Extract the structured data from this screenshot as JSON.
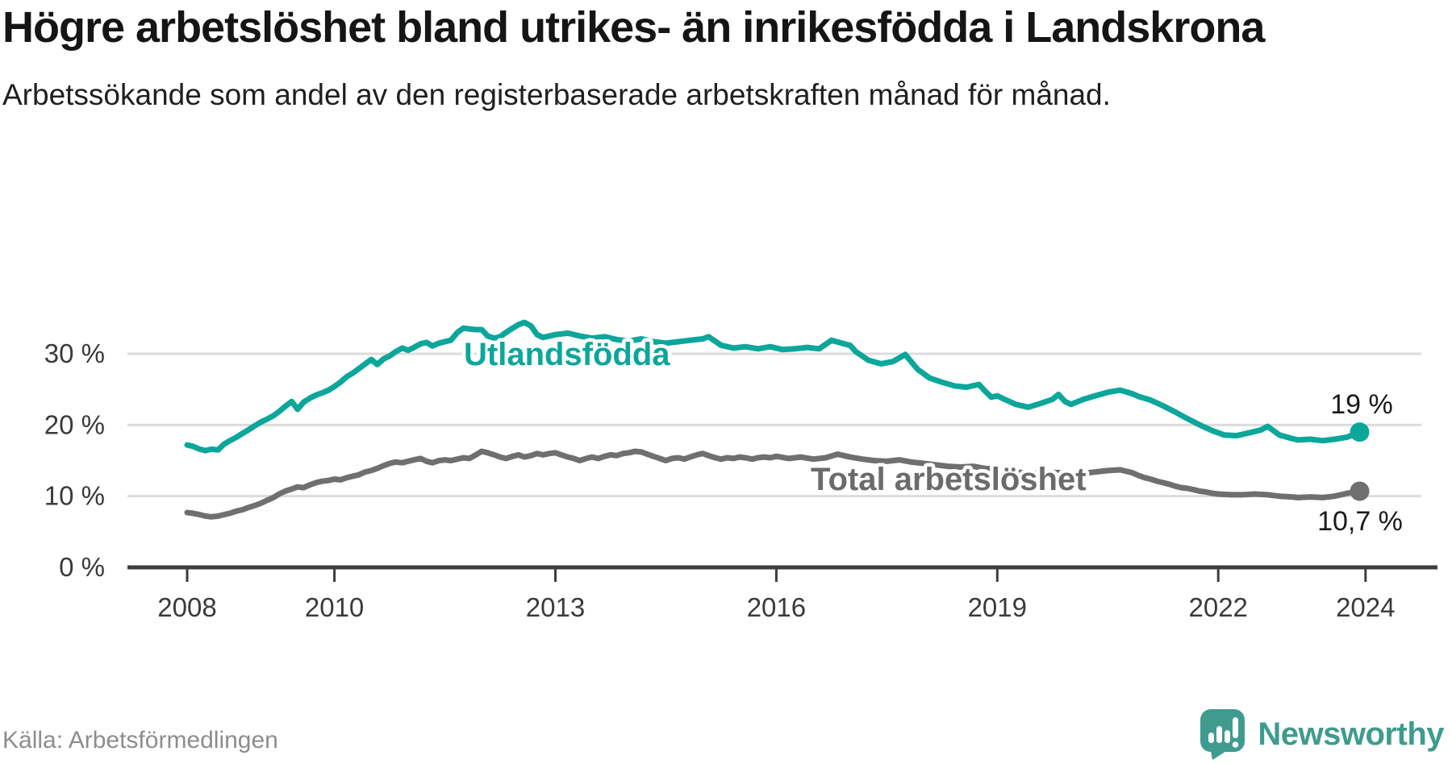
{
  "header": {
    "title": "Högre arbetslöshet bland utrikes- än inrikesfödda i Landskrona",
    "subtitle": "Arbetssökande som andel av den registerbaserade arbetskraften månad för månad."
  },
  "footer": {
    "source": "Källa: Arbetsförmedlingen",
    "brand": "Newsworthy",
    "brand_logo_icon": "bar-chart-speech-bubble-icon"
  },
  "colors": {
    "series_foreign_born": "#0ca69b",
    "series_total": "#6f6f6f",
    "grid": "#dcdcdc",
    "axis": "#3d3d3d",
    "tick_text": "#3a3a3a",
    "annotation_text": "#1a1a1a",
    "brand": "#3f9b8e"
  },
  "chart_data": {
    "type": "line",
    "unit": "%",
    "grid": "horizontal",
    "legend_position": "inline-labels",
    "xlim": [
      2007.2,
      2024.9
    ],
    "ylim": [
      0,
      36.5
    ],
    "x_ticks": [
      2008,
      2010,
      2013,
      2016,
      2019,
      2022,
      2024
    ],
    "y_ticks": [
      {
        "value": 0,
        "label": "0 %"
      },
      {
        "value": 10,
        "label": "10 %"
      },
      {
        "value": 20,
        "label": "20 %"
      },
      {
        "value": 30,
        "label": "30 %"
      }
    ],
    "series": [
      {
        "name": "Utlandsfödda",
        "color": "#0ca69b",
        "end_label": "19 %",
        "end_value": 19,
        "points": [
          [
            2008.0,
            17.2
          ],
          [
            2008.08,
            17.0
          ],
          [
            2008.17,
            16.6
          ],
          [
            2008.25,
            16.4
          ],
          [
            2008.33,
            16.6
          ],
          [
            2008.42,
            16.5
          ],
          [
            2008.5,
            17.3
          ],
          [
            2008.58,
            17.8
          ],
          [
            2008.67,
            18.3
          ],
          [
            2008.75,
            18.8
          ],
          [
            2008.83,
            19.3
          ],
          [
            2008.92,
            19.9
          ],
          [
            2009.0,
            20.4
          ],
          [
            2009.08,
            20.8
          ],
          [
            2009.17,
            21.3
          ],
          [
            2009.25,
            21.9
          ],
          [
            2009.33,
            22.6
          ],
          [
            2009.42,
            23.3
          ],
          [
            2009.5,
            22.2
          ],
          [
            2009.58,
            23.2
          ],
          [
            2009.67,
            23.8
          ],
          [
            2009.75,
            24.2
          ],
          [
            2009.83,
            24.5
          ],
          [
            2009.92,
            24.9
          ],
          [
            2010.0,
            25.4
          ],
          [
            2010.08,
            26.0
          ],
          [
            2010.17,
            26.8
          ],
          [
            2010.25,
            27.3
          ],
          [
            2010.33,
            27.9
          ],
          [
            2010.42,
            28.6
          ],
          [
            2010.5,
            29.2
          ],
          [
            2010.58,
            28.5
          ],
          [
            2010.67,
            29.3
          ],
          [
            2010.75,
            29.7
          ],
          [
            2010.83,
            30.3
          ],
          [
            2010.92,
            30.8
          ],
          [
            2011.0,
            30.5
          ],
          [
            2011.08,
            30.9
          ],
          [
            2011.17,
            31.4
          ],
          [
            2011.25,
            31.6
          ],
          [
            2011.33,
            31.1
          ],
          [
            2011.42,
            31.5
          ],
          [
            2011.5,
            31.7
          ],
          [
            2011.58,
            31.9
          ],
          [
            2011.67,
            33.0
          ],
          [
            2011.75,
            33.6
          ],
          [
            2011.83,
            33.5
          ],
          [
            2011.92,
            33.4
          ],
          [
            2012.0,
            33.4
          ],
          [
            2012.08,
            32.5
          ],
          [
            2012.17,
            32.2
          ],
          [
            2012.25,
            32.4
          ],
          [
            2012.33,
            33.0
          ],
          [
            2012.42,
            33.6
          ],
          [
            2012.5,
            34.1
          ],
          [
            2012.58,
            34.4
          ],
          [
            2012.67,
            33.9
          ],
          [
            2012.75,
            32.7
          ],
          [
            2012.83,
            32.3
          ],
          [
            2012.92,
            32.5
          ],
          [
            2013.0,
            32.7
          ],
          [
            2013.17,
            32.9
          ],
          [
            2013.33,
            32.5
          ],
          [
            2013.5,
            32.2
          ],
          [
            2013.67,
            32.4
          ],
          [
            2013.83,
            32.0
          ],
          [
            2014.0,
            31.8
          ],
          [
            2014.17,
            32.1
          ],
          [
            2014.33,
            31.7
          ],
          [
            2014.5,
            31.5
          ],
          [
            2014.67,
            31.7
          ],
          [
            2014.83,
            31.9
          ],
          [
            2015.0,
            32.1
          ],
          [
            2015.08,
            32.4
          ],
          [
            2015.25,
            31.2
          ],
          [
            2015.42,
            30.8
          ],
          [
            2015.58,
            31.0
          ],
          [
            2015.75,
            30.7
          ],
          [
            2015.92,
            31.0
          ],
          [
            2016.08,
            30.6
          ],
          [
            2016.25,
            30.7
          ],
          [
            2016.42,
            30.9
          ],
          [
            2016.58,
            30.7
          ],
          [
            2016.75,
            31.9
          ],
          [
            2016.92,
            31.4
          ],
          [
            2017.0,
            31.2
          ],
          [
            2017.08,
            30.3
          ],
          [
            2017.25,
            29.1
          ],
          [
            2017.42,
            28.6
          ],
          [
            2017.58,
            28.9
          ],
          [
            2017.75,
            29.9
          ],
          [
            2017.83,
            28.9
          ],
          [
            2017.92,
            27.8
          ],
          [
            2018.08,
            26.6
          ],
          [
            2018.25,
            26.0
          ],
          [
            2018.42,
            25.5
          ],
          [
            2018.58,
            25.3
          ],
          [
            2018.75,
            25.7
          ],
          [
            2018.83,
            24.8
          ],
          [
            2018.92,
            23.9
          ],
          [
            2019.0,
            24.1
          ],
          [
            2019.08,
            23.7
          ],
          [
            2019.25,
            22.9
          ],
          [
            2019.42,
            22.5
          ],
          [
            2019.58,
            23.0
          ],
          [
            2019.75,
            23.6
          ],
          [
            2019.83,
            24.3
          ],
          [
            2019.92,
            23.3
          ],
          [
            2020.0,
            22.9
          ],
          [
            2020.17,
            23.6
          ],
          [
            2020.33,
            24.1
          ],
          [
            2020.5,
            24.6
          ],
          [
            2020.67,
            24.9
          ],
          [
            2020.83,
            24.4
          ],
          [
            2020.92,
            24.0
          ],
          [
            2021.08,
            23.5
          ],
          [
            2021.25,
            22.7
          ],
          [
            2021.42,
            21.8
          ],
          [
            2021.58,
            20.9
          ],
          [
            2021.75,
            20.0
          ],
          [
            2021.92,
            19.2
          ],
          [
            2022.08,
            18.6
          ],
          [
            2022.25,
            18.5
          ],
          [
            2022.42,
            18.9
          ],
          [
            2022.58,
            19.3
          ],
          [
            2022.67,
            19.8
          ],
          [
            2022.83,
            18.6
          ],
          [
            2023.0,
            18.1
          ],
          [
            2023.08,
            17.9
          ],
          [
            2023.25,
            18.0
          ],
          [
            2023.42,
            17.8
          ],
          [
            2023.58,
            18.0
          ],
          [
            2023.75,
            18.3
          ],
          [
            2023.92,
            19.0
          ]
        ]
      },
      {
        "name": "Total arbetslöshet",
        "color": "#6f6f6f",
        "end_label": "10,7 %",
        "end_value": 10.7,
        "points": [
          [
            2008.0,
            7.7
          ],
          [
            2008.08,
            7.6
          ],
          [
            2008.17,
            7.4
          ],
          [
            2008.25,
            7.2
          ],
          [
            2008.33,
            7.1
          ],
          [
            2008.42,
            7.2
          ],
          [
            2008.5,
            7.4
          ],
          [
            2008.58,
            7.6
          ],
          [
            2008.67,
            7.9
          ],
          [
            2008.75,
            8.1
          ],
          [
            2008.83,
            8.4
          ],
          [
            2008.92,
            8.7
          ],
          [
            2009.0,
            9.0
          ],
          [
            2009.08,
            9.4
          ],
          [
            2009.17,
            9.8
          ],
          [
            2009.25,
            10.3
          ],
          [
            2009.33,
            10.7
          ],
          [
            2009.42,
            11.0
          ],
          [
            2009.5,
            11.3
          ],
          [
            2009.58,
            11.2
          ],
          [
            2009.67,
            11.6
          ],
          [
            2009.75,
            11.9
          ],
          [
            2009.83,
            12.1
          ],
          [
            2009.92,
            12.2
          ],
          [
            2010.0,
            12.4
          ],
          [
            2010.08,
            12.3
          ],
          [
            2010.17,
            12.6
          ],
          [
            2010.25,
            12.8
          ],
          [
            2010.33,
            13.0
          ],
          [
            2010.42,
            13.4
          ],
          [
            2010.5,
            13.6
          ],
          [
            2010.58,
            13.9
          ],
          [
            2010.67,
            14.3
          ],
          [
            2010.75,
            14.6
          ],
          [
            2010.83,
            14.8
          ],
          [
            2010.92,
            14.7
          ],
          [
            2011.0,
            14.9
          ],
          [
            2011.08,
            15.1
          ],
          [
            2011.17,
            15.3
          ],
          [
            2011.25,
            14.9
          ],
          [
            2011.33,
            14.7
          ],
          [
            2011.42,
            15.0
          ],
          [
            2011.5,
            15.1
          ],
          [
            2011.58,
            15.0
          ],
          [
            2011.67,
            15.2
          ],
          [
            2011.75,
            15.4
          ],
          [
            2011.83,
            15.3
          ],
          [
            2011.92,
            15.8
          ],
          [
            2012.0,
            16.3
          ],
          [
            2012.08,
            16.1
          ],
          [
            2012.17,
            15.8
          ],
          [
            2012.25,
            15.5
          ],
          [
            2012.33,
            15.3
          ],
          [
            2012.42,
            15.6
          ],
          [
            2012.5,
            15.8
          ],
          [
            2012.58,
            15.5
          ],
          [
            2012.67,
            15.7
          ],
          [
            2012.75,
            16.0
          ],
          [
            2012.83,
            15.8
          ],
          [
            2012.92,
            16.0
          ],
          [
            2013.0,
            16.1
          ],
          [
            2013.08,
            15.8
          ],
          [
            2013.17,
            15.5
          ],
          [
            2013.25,
            15.3
          ],
          [
            2013.33,
            15.0
          ],
          [
            2013.42,
            15.3
          ],
          [
            2013.5,
            15.5
          ],
          [
            2013.58,
            15.3
          ],
          [
            2013.67,
            15.6
          ],
          [
            2013.75,
            15.8
          ],
          [
            2013.83,
            15.7
          ],
          [
            2013.92,
            16.0
          ],
          [
            2014.0,
            16.1
          ],
          [
            2014.08,
            16.3
          ],
          [
            2014.17,
            16.2
          ],
          [
            2014.25,
            15.9
          ],
          [
            2014.33,
            15.6
          ],
          [
            2014.42,
            15.3
          ],
          [
            2014.5,
            15.0
          ],
          [
            2014.58,
            15.3
          ],
          [
            2014.67,
            15.4
          ],
          [
            2014.75,
            15.2
          ],
          [
            2014.83,
            15.5
          ],
          [
            2014.92,
            15.8
          ],
          [
            2015.0,
            16.0
          ],
          [
            2015.08,
            15.7
          ],
          [
            2015.17,
            15.4
          ],
          [
            2015.25,
            15.2
          ],
          [
            2015.33,
            15.4
          ],
          [
            2015.42,
            15.3
          ],
          [
            2015.5,
            15.5
          ],
          [
            2015.58,
            15.4
          ],
          [
            2015.67,
            15.2
          ],
          [
            2015.75,
            15.4
          ],
          [
            2015.83,
            15.5
          ],
          [
            2015.92,
            15.4
          ],
          [
            2016.0,
            15.6
          ],
          [
            2016.17,
            15.3
          ],
          [
            2016.33,
            15.5
          ],
          [
            2016.5,
            15.2
          ],
          [
            2016.67,
            15.4
          ],
          [
            2016.83,
            15.9
          ],
          [
            2017.0,
            15.5
          ],
          [
            2017.17,
            15.2
          ],
          [
            2017.33,
            15.0
          ],
          [
            2017.5,
            14.9
          ],
          [
            2017.67,
            15.1
          ],
          [
            2017.83,
            14.8
          ],
          [
            2018.0,
            14.6
          ],
          [
            2018.17,
            14.4
          ],
          [
            2018.33,
            14.2
          ],
          [
            2018.5,
            14.1
          ],
          [
            2018.67,
            14.2
          ],
          [
            2018.83,
            13.9
          ],
          [
            2019.0,
            13.8
          ],
          [
            2019.17,
            13.5
          ],
          [
            2019.33,
            13.3
          ],
          [
            2019.5,
            13.2
          ],
          [
            2019.67,
            13.4
          ],
          [
            2019.83,
            13.3
          ],
          [
            2020.0,
            13.1
          ],
          [
            2020.17,
            13.2
          ],
          [
            2020.33,
            13.4
          ],
          [
            2020.5,
            13.6
          ],
          [
            2020.67,
            13.7
          ],
          [
            2020.83,
            13.3
          ],
          [
            2020.92,
            12.9
          ],
          [
            2021.0,
            12.6
          ],
          [
            2021.08,
            12.4
          ],
          [
            2021.17,
            12.1
          ],
          [
            2021.25,
            11.9
          ],
          [
            2021.33,
            11.7
          ],
          [
            2021.42,
            11.4
          ],
          [
            2021.5,
            11.2
          ],
          [
            2021.58,
            11.1
          ],
          [
            2021.67,
            10.9
          ],
          [
            2021.75,
            10.7
          ],
          [
            2021.83,
            10.6
          ],
          [
            2021.92,
            10.4
          ],
          [
            2022.0,
            10.3
          ],
          [
            2022.17,
            10.2
          ],
          [
            2022.33,
            10.2
          ],
          [
            2022.5,
            10.3
          ],
          [
            2022.67,
            10.2
          ],
          [
            2022.83,
            10.0
          ],
          [
            2023.0,
            9.9
          ],
          [
            2023.08,
            9.8
          ],
          [
            2023.25,
            9.9
          ],
          [
            2023.42,
            9.8
          ],
          [
            2023.58,
            10.0
          ],
          [
            2023.75,
            10.4
          ],
          [
            2023.92,
            10.7
          ]
        ]
      }
    ]
  }
}
